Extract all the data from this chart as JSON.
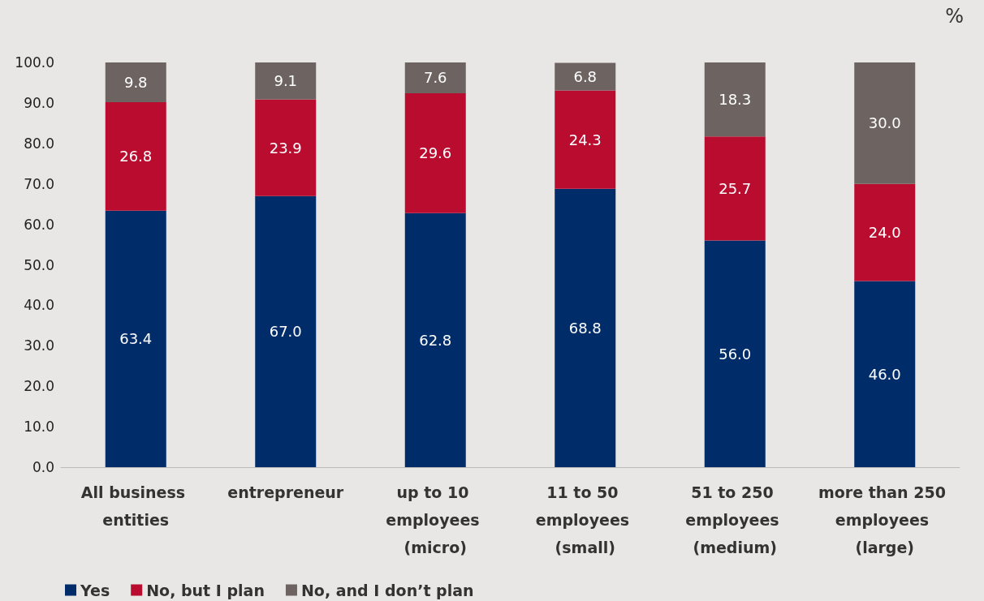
{
  "chart_data": {
    "type": "bar",
    "stacked": true,
    "ylabel": "%",
    "categories": [
      "All business entities",
      "entrepreneur",
      "up to 10 employees (micro)",
      "11 to 50 employees (small)",
      "51 to 250 employees (medium)",
      "more than 250 employees (large)"
    ],
    "series": [
      {
        "name": "Yes",
        "color": "#002d6a",
        "values": [
          63.4,
          67.0,
          62.8,
          68.8,
          56.0,
          46.0
        ],
        "value_labels": [
          "63.4",
          "67.0",
          "62.8",
          "68.8",
          "56.0",
          "46.0"
        ]
      },
      {
        "name": "No, but I plan",
        "color": "#ba0c2f",
        "values": [
          26.8,
          23.9,
          29.6,
          24.3,
          25.7,
          24.0
        ],
        "value_labels": [
          "26.8",
          "23.9",
          "29.6",
          "24.3",
          "25.7",
          "24.0"
        ]
      },
      {
        "name": "No, and I don’t plan",
        "color": "#6d6461",
        "values": [
          9.8,
          9.1,
          7.6,
          6.8,
          18.3,
          30.0
        ],
        "value_labels": [
          "9.8",
          "9.1",
          "7.6",
          "6.8",
          "18.3",
          "30.0"
        ]
      }
    ],
    "ylim": [
      0,
      100
    ],
    "yticks": [
      {
        "value": 0,
        "label": "0.0"
      },
      {
        "value": 10,
        "label": "10.0"
      },
      {
        "value": 20,
        "label": "20.0"
      },
      {
        "value": 30,
        "label": "30.0"
      },
      {
        "value": 40,
        "label": "40.0"
      },
      {
        "value": 50,
        "label": "50.0"
      },
      {
        "value": 60,
        "label": "60.0"
      },
      {
        "value": 70,
        "label": "70.0"
      },
      {
        "value": 80,
        "label": "80.0"
      },
      {
        "value": 90,
        "label": "90.0"
      },
      {
        "value": 100,
        "label": "100.0"
      }
    ],
    "grid": false,
    "legend": "bottom left"
  }
}
